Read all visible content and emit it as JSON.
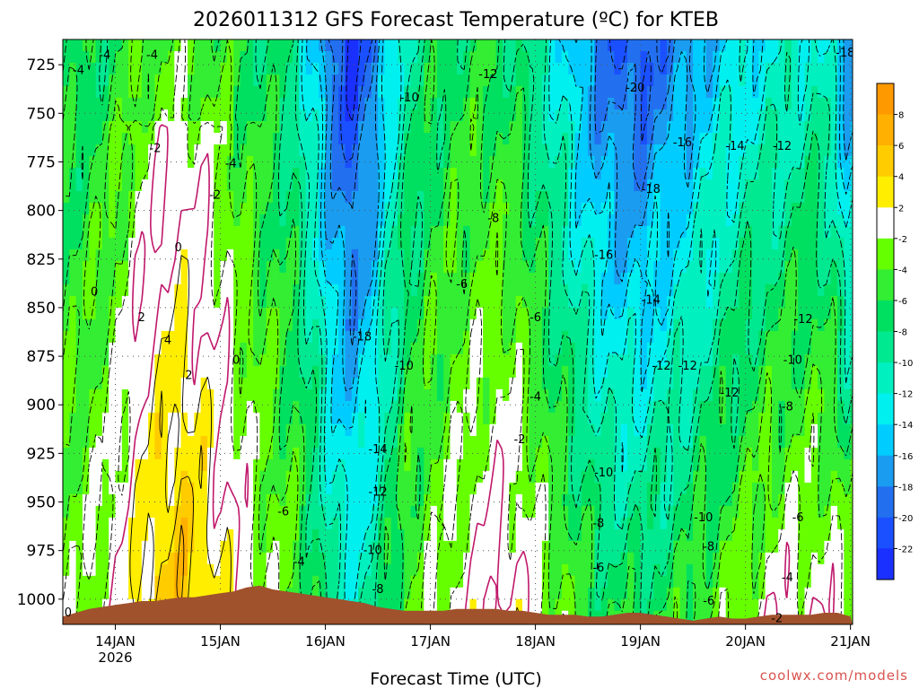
{
  "chart_data": {
    "type": "heatmap",
    "title": "2026011312 GFS Forecast Temperature (ºC) for KTEB",
    "xlabel": "Forecast Time (UTC)",
    "ylabel": "",
    "credit": "coolwx.com/models",
    "y_axis": {
      "scale": "pressure_hpa",
      "inverted": true,
      "ylim": [
        1013,
        712
      ],
      "ticks": [
        "725",
        "750",
        "775",
        "800",
        "825",
        "850",
        "875",
        "900",
        "925",
        "950",
        "975",
        "1000"
      ]
    },
    "x_axis": {
      "unit": "day",
      "xlim": [
        13.5,
        21.02
      ],
      "ticks": [
        {
          "value": 14,
          "label": "14JAN",
          "sublabel": "2026"
        },
        {
          "value": 15,
          "label": "15JAN",
          "sublabel": ""
        },
        {
          "value": 16,
          "label": "16JAN",
          "sublabel": ""
        },
        {
          "value": 17,
          "label": "17JAN",
          "sublabel": ""
        },
        {
          "value": 18,
          "label": "18JAN",
          "sublabel": ""
        },
        {
          "value": 19,
          "label": "19JAN",
          "sublabel": ""
        },
        {
          "value": 20,
          "label": "20JAN",
          "sublabel": ""
        },
        {
          "value": 21,
          "label": "21JAN",
          "sublabel": ""
        }
      ]
    },
    "grid": true,
    "colorbar": {
      "ticks": [
        "8",
        "6",
        "4",
        "2",
        "-2",
        "-4",
        "-6",
        "-8",
        "-10",
        "-12",
        "-14",
        "-16",
        "-18",
        "-20",
        "-22"
      ],
      "bins": [
        {
          "low": 8,
          "high": 10,
          "color": "#ff9900"
        },
        {
          "low": 6,
          "high": 8,
          "color": "#ffb000"
        },
        {
          "low": 4,
          "high": 6,
          "color": "#ffcc00"
        },
        {
          "low": 2,
          "high": 4,
          "color": "#ffee00"
        },
        {
          "low": -2,
          "high": 2,
          "color": "#ffffff"
        },
        {
          "low": -4,
          "high": -2,
          "color": "#66ff00"
        },
        {
          "low": -6,
          "high": -4,
          "color": "#33ee33"
        },
        {
          "low": -8,
          "high": -6,
          "color": "#00e060"
        },
        {
          "low": -10,
          "high": -8,
          "color": "#00e890"
        },
        {
          "low": -12,
          "high": -10,
          "color": "#00f0c0"
        },
        {
          "low": -14,
          "high": -12,
          "color": "#00f0f0"
        },
        {
          "low": -16,
          "high": -14,
          "color": "#00ccff"
        },
        {
          "low": -18,
          "high": -16,
          "color": "#1a9cf0"
        },
        {
          "low": -20,
          "high": -18,
          "color": "#2270f0"
        },
        {
          "low": -22,
          "high": -20,
          "color": "#1a50ff"
        },
        {
          "low": -24,
          "high": -22,
          "color": "#1a30ff"
        }
      ]
    },
    "times": [
      13.5,
      13.625,
      13.75,
      13.875,
      14,
      14.125,
      14.25,
      14.375,
      14.5,
      14.625,
      14.75,
      14.875,
      15,
      15.125,
      15.25,
      15.375,
      15.5,
      15.625,
      15.75,
      15.875,
      16,
      16.125,
      16.25,
      16.375,
      16.5,
      16.625,
      16.75,
      16.875,
      17,
      17.125,
      17.25,
      17.375,
      17.5,
      17.625,
      17.75,
      17.875,
      18,
      18.125,
      18.25,
      18.375,
      18.5,
      18.625,
      18.75,
      18.875,
      19,
      19.125,
      19.25,
      19.375,
      19.5,
      19.625,
      19.75,
      19.875,
      20,
      20.125,
      20.25,
      20.375,
      20.5,
      20.625,
      20.75,
      20.875,
      21
    ],
    "surface_pressure_hpa": [
      1009,
      1007,
      1005,
      1004,
      1003,
      1002,
      1001,
      1001,
      1000,
      999,
      999,
      998,
      997,
      996,
      994,
      993,
      995,
      996,
      997,
      998,
      999,
      1000,
      1001,
      1002,
      1004,
      1005,
      1006,
      1006,
      1006,
      1006,
      1005,
      1005,
      1005,
      1005,
      1006,
      1006,
      1007,
      1008,
      1008,
      1008,
      1009,
      1009,
      1008,
      1007,
      1007,
      1008,
      1009,
      1010,
      1011,
      1010,
      1009,
      1010,
      1010,
      1009,
      1008,
      1008,
      1008,
      1008,
      1007,
      1007,
      1009
    ],
    "contour_labels": [
      {
        "x": 13.65,
        "p": 728,
        "text": "-4"
      },
      {
        "x": 13.9,
        "p": 720,
        "text": "-4"
      },
      {
        "x": 14.35,
        "p": 720,
        "text": "-4"
      },
      {
        "x": 14.38,
        "p": 768,
        "text": "-2"
      },
      {
        "x": 15.1,
        "p": 776,
        "text": "-4"
      },
      {
        "x": 14.95,
        "p": 792,
        "text": "-2"
      },
      {
        "x": 14.6,
        "p": 819,
        "text": "0"
      },
      {
        "x": 13.8,
        "p": 842,
        "text": "0"
      },
      {
        "x": 14.25,
        "p": 855,
        "text": "2"
      },
      {
        "x": 14.5,
        "p": 867,
        "text": "4"
      },
      {
        "x": 14.7,
        "p": 885,
        "text": "2"
      },
      {
        "x": 15.15,
        "p": 877,
        "text": "0"
      },
      {
        "x": 13.55,
        "p": 1007,
        "text": "0"
      },
      {
        "x": 15.6,
        "p": 955,
        "text": "-6"
      },
      {
        "x": 15.75,
        "p": 981,
        "text": "-4"
      },
      {
        "x": 16.35,
        "p": 865,
        "text": "-18"
      },
      {
        "x": 16.75,
        "p": 880,
        "text": "-10"
      },
      {
        "x": 16.8,
        "p": 742,
        "text": "-10"
      },
      {
        "x": 17.55,
        "p": 730,
        "text": "-12"
      },
      {
        "x": 17.6,
        "p": 804,
        "text": "-8"
      },
      {
        "x": 17.3,
        "p": 838,
        "text": "-6"
      },
      {
        "x": 18.0,
        "p": 855,
        "text": "-6"
      },
      {
        "x": 18.0,
        "p": 896,
        "text": "-4"
      },
      {
        "x": 17.85,
        "p": 918,
        "text": "-2"
      },
      {
        "x": 16.5,
        "p": 923,
        "text": "-14"
      },
      {
        "x": 16.5,
        "p": 945,
        "text": "-12"
      },
      {
        "x": 16.45,
        "p": 975,
        "text": "-10"
      },
      {
        "x": 16.5,
        "p": 995,
        "text": "-8"
      },
      {
        "x": 18.95,
        "p": 737,
        "text": "-20"
      },
      {
        "x": 19.4,
        "p": 765,
        "text": "-16"
      },
      {
        "x": 19.1,
        "p": 789,
        "text": "-18"
      },
      {
        "x": 19.9,
        "p": 767,
        "text": "-14"
      },
      {
        "x": 20.35,
        "p": 767,
        "text": "-12"
      },
      {
        "x": 20.95,
        "p": 719,
        "text": "-18"
      },
      {
        "x": 18.65,
        "p": 823,
        "text": "-16"
      },
      {
        "x": 19.1,
        "p": 846,
        "text": "-14"
      },
      {
        "x": 20.55,
        "p": 856,
        "text": "-12"
      },
      {
        "x": 19.2,
        "p": 880,
        "text": "-12"
      },
      {
        "x": 19.45,
        "p": 880,
        "text": "-12"
      },
      {
        "x": 19.85,
        "p": 894,
        "text": "-12"
      },
      {
        "x": 20.45,
        "p": 877,
        "text": "-10"
      },
      {
        "x": 20.4,
        "p": 901,
        "text": "-8"
      },
      {
        "x": 18.65,
        "p": 935,
        "text": "-10"
      },
      {
        "x": 18.6,
        "p": 961,
        "text": "-8"
      },
      {
        "x": 18.6,
        "p": 984,
        "text": "-6"
      },
      {
        "x": 19.6,
        "p": 958,
        "text": "-10"
      },
      {
        "x": 19.65,
        "p": 973,
        "text": "-8"
      },
      {
        "x": 19.65,
        "p": 1001,
        "text": "-6"
      },
      {
        "x": 20.5,
        "p": 958,
        "text": "-6"
      },
      {
        "x": 20.4,
        "p": 989,
        "text": "-4"
      },
      {
        "x": 20.3,
        "p": 1010,
        "text": "-2"
      }
    ]
  }
}
